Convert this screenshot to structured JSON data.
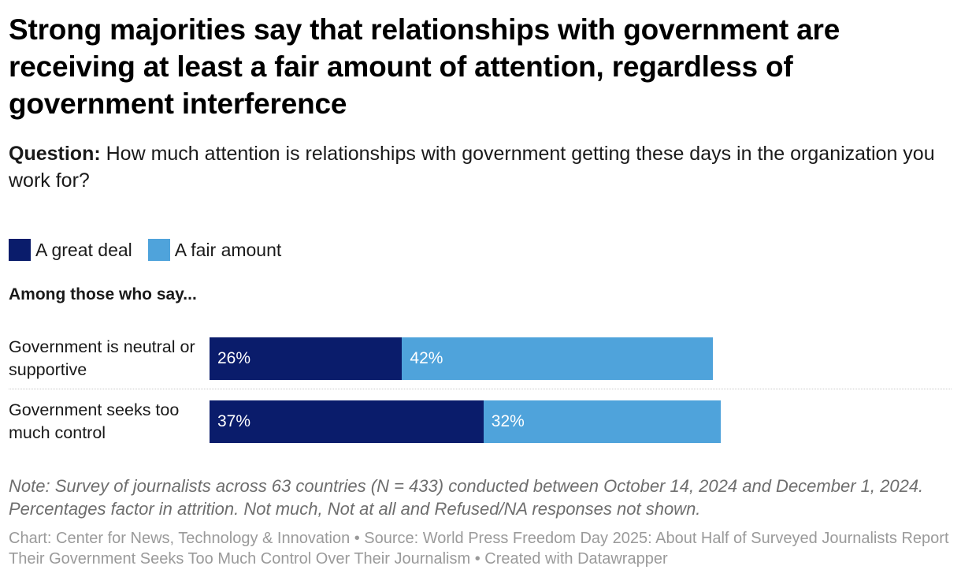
{
  "title": "Strong majorities say that relationships with government are receiving at least a fair amount of attention, regardless of government interference",
  "question": {
    "label": "Question:",
    "text": "How much attention is relationships with government getting these days in the organization you work for?"
  },
  "legend": [
    {
      "name": "A great deal",
      "color": "#0a1c6b"
    },
    {
      "name": "A fair amount",
      "color": "#4fa3db"
    }
  ],
  "chart_data": {
    "type": "bar",
    "orientation": "horizontal",
    "stacked": true,
    "group_header": "Among those who say...",
    "categories": [
      "Government is neutral or supportive",
      "Government seeks too much control"
    ],
    "series": [
      {
        "name": "A great deal",
        "values": [
          26,
          37
        ],
        "labels": [
          "26%",
          "37%"
        ],
        "color": "#0a1c6b"
      },
      {
        "name": "A fair amount",
        "values": [
          42,
          32
        ],
        "labels": [
          "42%",
          "32%"
        ],
        "color": "#4fa3db"
      }
    ],
    "xlim": [
      0,
      100
    ],
    "grid": false,
    "legend_position": "top-left"
  },
  "note": "Note: Survey of journalists across 63 countries (N = 433) conducted between October 14, 2024 and December 1, 2024. Percentages factor in attrition. Not much, Not at all and Refused/NA responses not shown.",
  "credits": "Chart: Center for News, Technology & Innovation • Source: World Press Freedom Day 2025: About Half of Surveyed Journalists Report Their Government Seeks Too Much Control Over Their Journalism • Created with Datawrapper"
}
